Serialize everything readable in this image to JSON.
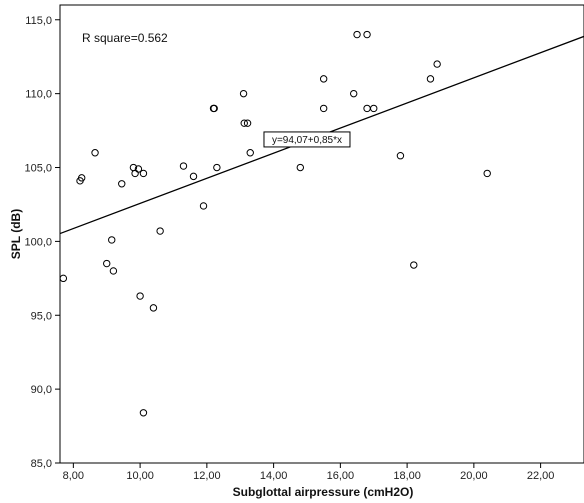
{
  "chart_data": {
    "type": "scatter",
    "title": "",
    "xlabel": "Subglottal  airpressure (cmH2O)",
    "ylabel": "SPL (dB)",
    "xlim": [
      7.6,
      23.3
    ],
    "ylim": [
      85.0,
      116.0
    ],
    "xticks": [
      "8,00",
      "10,00",
      "12,00",
      "14,00",
      "16,00",
      "18,00",
      "20,00",
      "22,00"
    ],
    "xtick_values": [
      8,
      10,
      12,
      14,
      16,
      18,
      20,
      22
    ],
    "yticks": [
      "85,0",
      "90,0",
      "95,0",
      "100,0",
      "105,0",
      "110,0",
      "115,0"
    ],
    "ytick_values": [
      85,
      90,
      95,
      100,
      105,
      110,
      115
    ],
    "grid": false,
    "marker": "open-circle",
    "points": [
      {
        "x": 7.7,
        "y": 97.5
      },
      {
        "x": 8.2,
        "y": 104.1
      },
      {
        "x": 8.25,
        "y": 104.3
      },
      {
        "x": 8.65,
        "y": 106.0
      },
      {
        "x": 9.0,
        "y": 98.5
      },
      {
        "x": 9.15,
        "y": 100.1
      },
      {
        "x": 9.2,
        "y": 98.0
      },
      {
        "x": 9.45,
        "y": 103.9
      },
      {
        "x": 9.8,
        "y": 105.0
      },
      {
        "x": 9.85,
        "y": 104.6
      },
      {
        "x": 9.95,
        "y": 104.9
      },
      {
        "x": 10.0,
        "y": 96.3
      },
      {
        "x": 10.1,
        "y": 104.6
      },
      {
        "x": 10.1,
        "y": 88.4
      },
      {
        "x": 10.4,
        "y": 95.5
      },
      {
        "x": 10.6,
        "y": 100.7
      },
      {
        "x": 11.3,
        "y": 105.1
      },
      {
        "x": 11.6,
        "y": 104.4
      },
      {
        "x": 11.9,
        "y": 102.4
      },
      {
        "x": 12.2,
        "y": 109.0
      },
      {
        "x": 12.22,
        "y": 109.0
      },
      {
        "x": 12.3,
        "y": 105.0
      },
      {
        "x": 13.1,
        "y": 110.0
      },
      {
        "x": 13.12,
        "y": 108.0
      },
      {
        "x": 13.22,
        "y": 108.0
      },
      {
        "x": 13.3,
        "y": 106.0
      },
      {
        "x": 14.8,
        "y": 105.0
      },
      {
        "x": 15.5,
        "y": 111.0
      },
      {
        "x": 15.5,
        "y": 109.0
      },
      {
        "x": 16.4,
        "y": 110.0
      },
      {
        "x": 16.5,
        "y": 114.0
      },
      {
        "x": 16.8,
        "y": 114.0
      },
      {
        "x": 16.8,
        "y": 109.0
      },
      {
        "x": 17.0,
        "y": 109.0
      },
      {
        "x": 17.8,
        "y": 105.8
      },
      {
        "x": 18.2,
        "y": 98.4
      },
      {
        "x": 18.7,
        "y": 111.0
      },
      {
        "x": 18.9,
        "y": 112.0
      },
      {
        "x": 20.4,
        "y": 104.6
      }
    ],
    "fit_line": {
      "intercept": 94.07,
      "slope": 0.85,
      "equation_label": "y=94,07+0,85*x",
      "label_anchor": {
        "x": 15.0,
        "y": 106.9
      }
    },
    "annotation": "R square=0.562"
  }
}
